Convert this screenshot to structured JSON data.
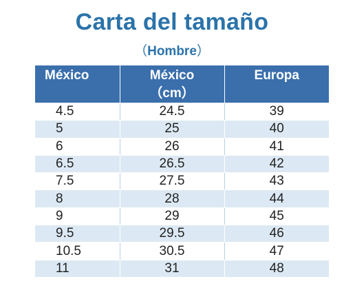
{
  "title": "Carta del tamaño",
  "subtitle": {
    "open": "（",
    "text": "Hombre",
    "close": "）"
  },
  "colors": {
    "title": "#2b73aa",
    "header_bg": "#3a6fac",
    "header_text": "#ffffff",
    "row_alt_bg": "#dce9f4"
  },
  "table": {
    "headers": [
      {
        "line1": "México",
        "line2": ""
      },
      {
        "line1": "México",
        "line2": "（cm）"
      },
      {
        "line1": "Europa",
        "line2": ""
      }
    ],
    "rows": [
      [
        "4.5",
        "24.5",
        "39"
      ],
      [
        "5",
        "25",
        "40"
      ],
      [
        "6",
        "26",
        "41"
      ],
      [
        "6.5",
        "26.5",
        "42"
      ],
      [
        "7.5",
        "27.5",
        "43"
      ],
      [
        "8",
        "28",
        "44"
      ],
      [
        "9",
        "29",
        "45"
      ],
      [
        "9.5",
        "29.5",
        "46"
      ],
      [
        "10.5",
        "30.5",
        "47"
      ],
      [
        "11",
        "31",
        "48"
      ]
    ]
  }
}
